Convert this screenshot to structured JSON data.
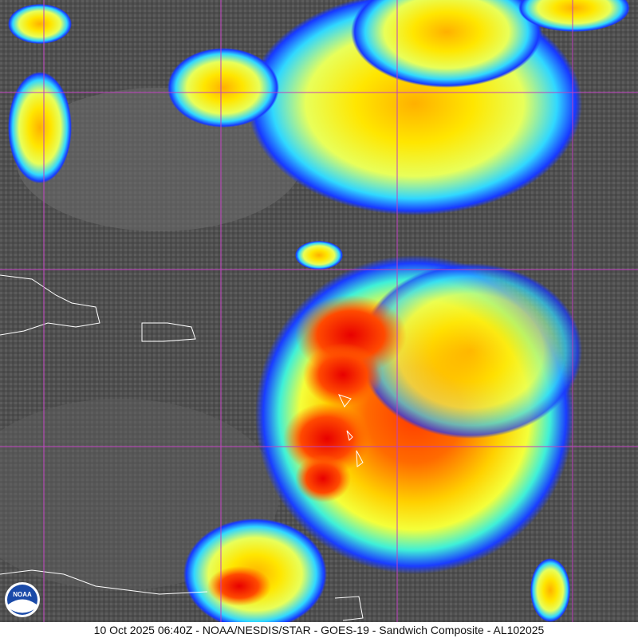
{
  "caption": "10 Oct 2025 06:40Z - NOAA/NESDIS/STAR - GOES-19 - Sandwich Composite - AL102025",
  "logo": "NOAA"
}
